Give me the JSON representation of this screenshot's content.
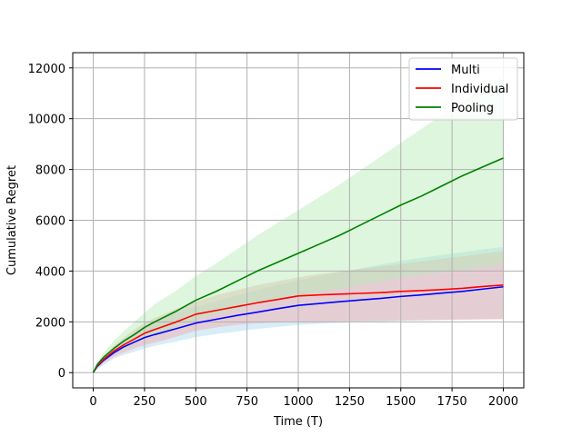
{
  "chart_data": {
    "type": "line",
    "title": "",
    "xlabel": "Time (T)",
    "ylabel": "Cumulative Regret",
    "xlim": [
      -100,
      2100
    ],
    "ylim": [
      -600,
      12600
    ],
    "x_ticks": [
      0,
      250,
      500,
      750,
      1000,
      1250,
      1500,
      1750,
      2000
    ],
    "y_ticks": [
      0,
      2000,
      4000,
      6000,
      8000,
      10000,
      12000
    ],
    "grid": true,
    "legend_position": "top-right",
    "x": [
      0,
      20,
      50,
      100,
      150,
      200,
      250,
      300,
      400,
      500,
      600,
      700,
      800,
      900,
      1000,
      1100,
      1200,
      1300,
      1400,
      1500,
      1600,
      1700,
      1800,
      1900,
      2000
    ],
    "series": [
      {
        "name": "Multi",
        "color": "#0000ff",
        "band_color": "#a8d8f0",
        "values": [
          0,
          250,
          480,
          780,
          1020,
          1200,
          1380,
          1500,
          1720,
          1950,
          2100,
          2250,
          2380,
          2520,
          2650,
          2720,
          2790,
          2860,
          2920,
          3000,
          3060,
          3130,
          3200,
          3290,
          3380
        ],
        "lower": [
          0,
          150,
          300,
          550,
          700,
          820,
          950,
          1050,
          1220,
          1400,
          1520,
          1620,
          1720,
          1800,
          1880,
          1920,
          1960,
          1990,
          2010,
          2040,
          2060,
          2080,
          2100,
          2110,
          2120
        ],
        "upper": [
          0,
          330,
          620,
          980,
          1300,
          1550,
          1800,
          2000,
          2350,
          2600,
          2800,
          3050,
          3250,
          3450,
          3620,
          3800,
          3950,
          4100,
          4250,
          4400,
          4520,
          4630,
          4740,
          4850,
          4950
        ]
      },
      {
        "name": "Individual",
        "color": "#ff0000",
        "band_color": "#f4a8a8",
        "values": [
          0,
          280,
          520,
          850,
          1100,
          1320,
          1550,
          1700,
          1980,
          2300,
          2450,
          2600,
          2750,
          2880,
          3020,
          3060,
          3090,
          3120,
          3150,
          3200,
          3230,
          3270,
          3320,
          3390,
          3450
        ],
        "lower": [
          0,
          180,
          360,
          620,
          800,
          950,
          1080,
          1180,
          1400,
          1650,
          1780,
          1880,
          1940,
          1980,
          2000,
          2010,
          2020,
          2030,
          2040,
          2050,
          2060,
          2070,
          2080,
          2090,
          2100
        ],
        "upper": [
          0,
          360,
          660,
          1050,
          1380,
          1700,
          1950,
          2150,
          2500,
          2800,
          3050,
          3250,
          3450,
          3600,
          3750,
          3880,
          3980,
          4080,
          4180,
          4280,
          4380,
          4480,
          4580,
          4680,
          4780
        ]
      },
      {
        "name": "Pooling",
        "color": "#008000",
        "band_color": "#b4ecb4",
        "values": [
          0,
          320,
          600,
          950,
          1250,
          1500,
          1780,
          2000,
          2400,
          2850,
          3200,
          3600,
          4000,
          4350,
          4700,
          5050,
          5400,
          5800,
          6200,
          6600,
          6950,
          7350,
          7750,
          8100,
          8450
        ],
        "lower": [
          0,
          230,
          430,
          720,
          950,
          1150,
          1350,
          1500,
          1800,
          2100,
          2300,
          2500,
          2700,
          2850,
          3000,
          3150,
          3300,
          3450,
          3600,
          3750,
          3850,
          3950,
          4050,
          4150,
          4250
        ],
        "upper": [
          0,
          420,
          780,
          1250,
          1650,
          2000,
          2350,
          2700,
          3200,
          3800,
          4300,
          4850,
          5400,
          5900,
          6400,
          6900,
          7400,
          7950,
          8500,
          9050,
          9600,
          10150,
          10700,
          11200,
          11700
        ]
      }
    ]
  }
}
